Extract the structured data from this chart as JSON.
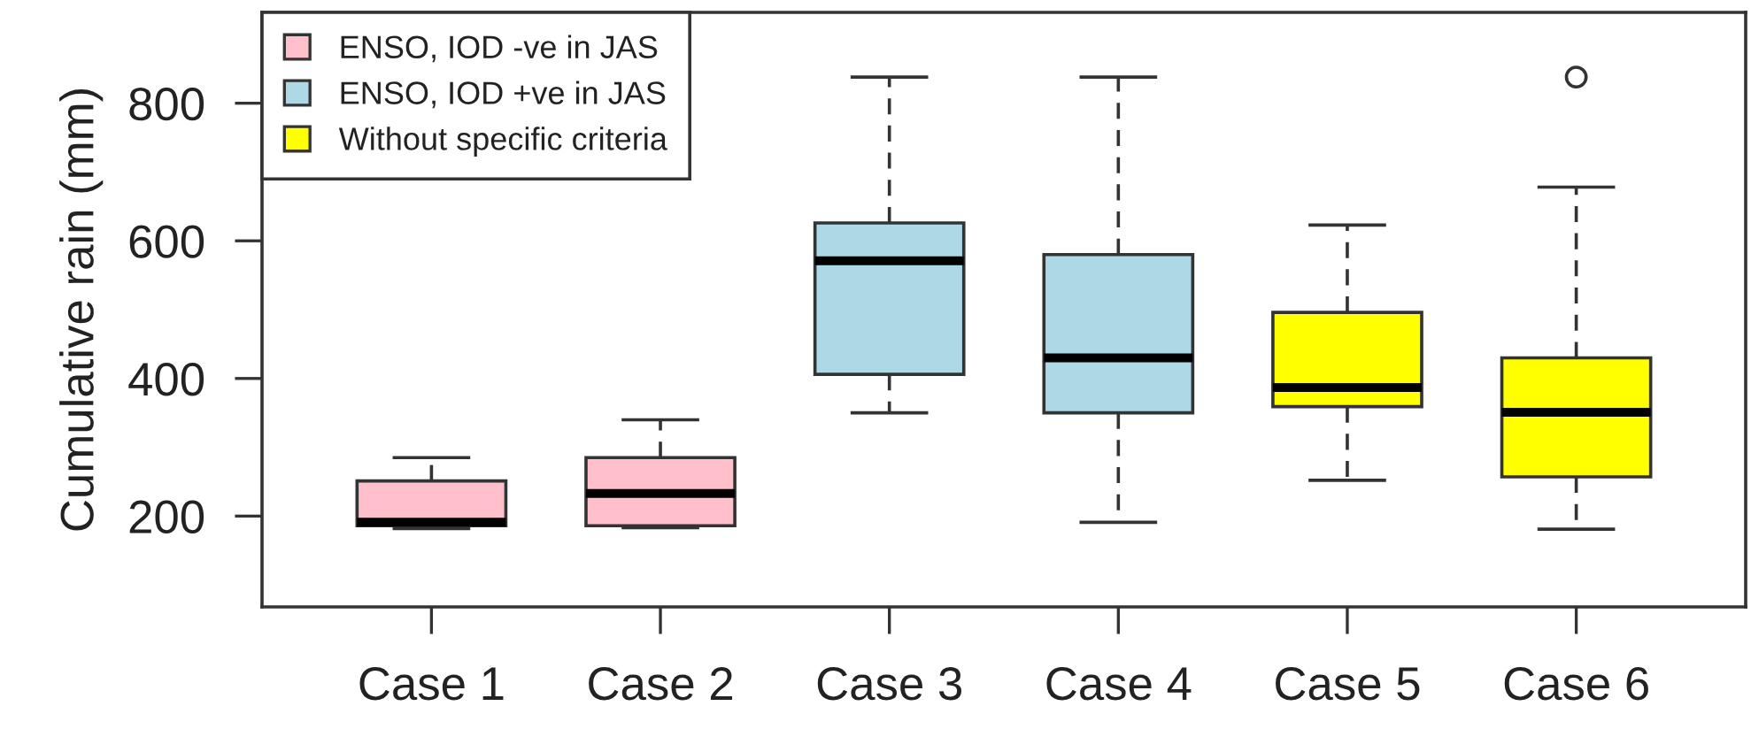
{
  "chart_data": {
    "type": "box",
    "ylabel": "Cumulative rain (mm)",
    "categories": [
      "Case 1",
      "Case 2",
      "Case 3",
      "Case 4",
      "Case 5",
      "Case 6"
    ],
    "series": [
      {
        "name": "ENSO, IOD -ve in JAS",
        "color": "#ffc0cb",
        "boxes": [
          {
            "low": 182,
            "q1": 186,
            "median": 191,
            "q3": 251,
            "high": 285
          },
          {
            "low": 183,
            "q1": 186,
            "median": 233,
            "q3": 285,
            "high": 340
          },
          null,
          null,
          null,
          null
        ]
      },
      {
        "name": "ENSO, IOD +ve in JAS",
        "color": "#add8e6",
        "boxes": [
          null,
          null,
          {
            "low": 350,
            "q1": 406,
            "median": 571,
            "q3": 626,
            "high": 838
          },
          {
            "low": 191,
            "q1": 350,
            "median": 430,
            "q3": 580,
            "high": 838
          },
          null,
          null
        ]
      },
      {
        "name": "Without specific criteria",
        "color": "#ffff00",
        "boxes": [
          null,
          null,
          null,
          null,
          {
            "low": 252,
            "q1": 359,
            "median": 387,
            "q3": 496,
            "high": 623
          },
          {
            "low": 181,
            "q1": 257,
            "median": 351,
            "q3": 430,
            "high": 678,
            "outliers": [
              838
            ]
          }
        ]
      }
    ],
    "ylim": [
      68,
      932
    ],
    "yticks": [
      200,
      400,
      600,
      800
    ],
    "legend": "top left",
    "marker": "circle",
    "line_style": "dashed"
  }
}
